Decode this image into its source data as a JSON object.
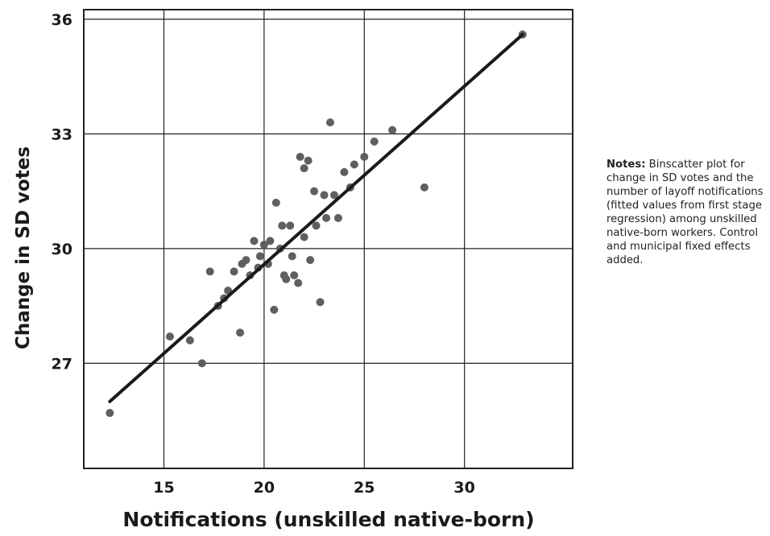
{
  "chart_data": {
    "type": "scatter",
    "xlabel": "Notifications (unskilled native-born)",
    "ylabel": "Change in SD votes",
    "xlim": [
      11.0,
      35.4
    ],
    "ylim": [
      24.25,
      36.25
    ],
    "x_ticks": [
      15,
      20,
      25,
      30
    ],
    "y_ticks": [
      27,
      30,
      33,
      36
    ],
    "grid": true,
    "legend": "none",
    "points": [
      [
        12.3,
        25.7
      ],
      [
        15.3,
        27.7
      ],
      [
        16.3,
        27.6
      ],
      [
        16.9,
        27.0
      ],
      [
        17.3,
        29.4
      ],
      [
        17.7,
        28.5
      ],
      [
        18.0,
        28.7
      ],
      [
        18.2,
        28.9
      ],
      [
        18.5,
        29.4
      ],
      [
        18.8,
        27.8
      ],
      [
        18.9,
        29.6
      ],
      [
        19.1,
        29.7
      ],
      [
        19.3,
        29.3
      ],
      [
        19.5,
        30.2
      ],
      [
        19.7,
        29.5
      ],
      [
        19.8,
        29.8
      ],
      [
        20.0,
        30.1
      ],
      [
        20.2,
        29.6
      ],
      [
        20.3,
        30.2
      ],
      [
        20.5,
        28.4
      ],
      [
        20.6,
        31.2
      ],
      [
        20.8,
        30.0
      ],
      [
        20.9,
        30.6
      ],
      [
        21.0,
        29.3
      ],
      [
        21.1,
        29.2
      ],
      [
        21.3,
        30.6
      ],
      [
        21.4,
        29.8
      ],
      [
        21.5,
        29.3
      ],
      [
        21.7,
        29.1
      ],
      [
        21.8,
        32.4
      ],
      [
        22.0,
        32.1
      ],
      [
        22.0,
        30.3
      ],
      [
        22.2,
        32.3
      ],
      [
        22.3,
        29.7
      ],
      [
        22.5,
        31.5
      ],
      [
        22.6,
        30.6
      ],
      [
        22.8,
        28.6
      ],
      [
        23.0,
        31.4
      ],
      [
        23.1,
        30.8
      ],
      [
        23.3,
        33.3
      ],
      [
        23.5,
        31.4
      ],
      [
        23.7,
        30.8
      ],
      [
        24.0,
        32.0
      ],
      [
        24.3,
        31.6
      ],
      [
        24.5,
        32.2
      ],
      [
        25.0,
        32.4
      ],
      [
        25.5,
        32.8
      ],
      [
        26.4,
        33.1
      ],
      [
        28.0,
        31.6
      ],
      [
        32.9,
        35.6
      ]
    ],
    "fit_line": {
      "x": [
        12.3,
        32.9
      ],
      "y": [
        26.0,
        35.6
      ]
    },
    "colors": {
      "points": "#5f5f5f",
      "line": "#1a1a1a",
      "grid": "#222222"
    }
  },
  "notes": {
    "label": "Notes:",
    "text": "Binscatter plot for change in SD votes and the number of layoff notifications (fitted values from first stage regression) among unskilled native-born workers. Control and municipal fixed effects added."
  }
}
